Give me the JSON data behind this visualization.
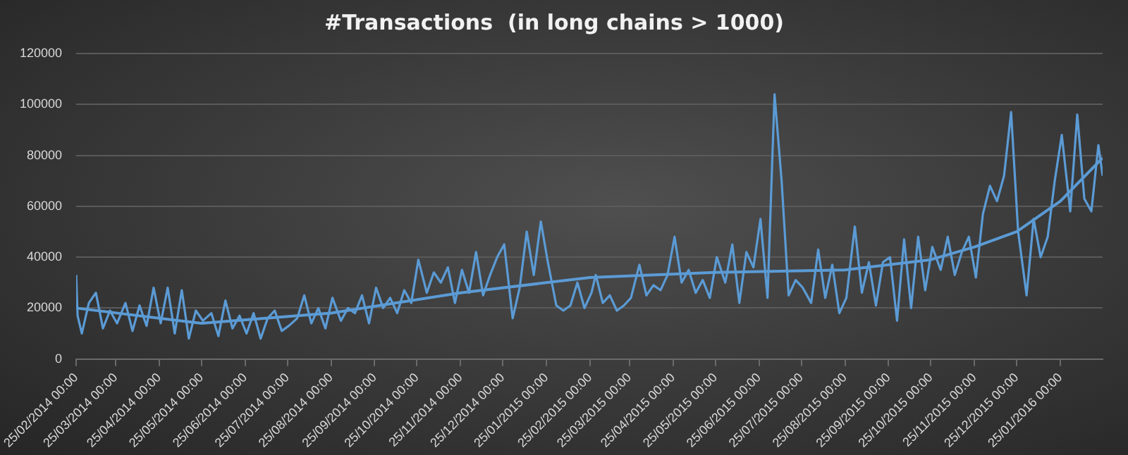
{
  "chart_data": {
    "type": "line",
    "title": "#Transactions  (in long chains > 1000)",
    "xlim": [
      "2014-02-25",
      "2016-02-24"
    ],
    "xticks": [
      {
        "value": "2014-02-25",
        "label": "25/02/2014 00:00"
      },
      {
        "value": "2014-03-25",
        "label": "25/03/2014 00:00"
      },
      {
        "value": "2014-04-25",
        "label": "25/04/2014 00:00"
      },
      {
        "value": "2014-05-25",
        "label": "25/05/2014 00:00"
      },
      {
        "value": "2014-06-25",
        "label": "25/06/2014 00:00"
      },
      {
        "value": "2014-07-25",
        "label": "25/07/2014 00:00"
      },
      {
        "value": "2014-08-25",
        "label": "25/08/2014 00:00"
      },
      {
        "value": "2014-09-25",
        "label": "25/09/2014 00:00"
      },
      {
        "value": "2014-10-25",
        "label": "25/10/2014 00:00"
      },
      {
        "value": "2014-11-25",
        "label": "25/11/2014 00:00"
      },
      {
        "value": "2014-12-25",
        "label": "25/12/2014 00:00"
      },
      {
        "value": "2015-01-25",
        "label": "25/01/2015 00:00"
      },
      {
        "value": "2015-02-25",
        "label": "25/02/2015 00:00"
      },
      {
        "value": "2015-03-25",
        "label": "25/03/2015 00:00"
      },
      {
        "value": "2015-04-25",
        "label": "25/04/2015 00:00"
      },
      {
        "value": "2015-05-25",
        "label": "25/05/2015 00:00"
      },
      {
        "value": "2015-06-25",
        "label": "25/06/2015 00:00"
      },
      {
        "value": "2015-07-25",
        "label": "25/07/2015 00:00"
      },
      {
        "value": "2015-08-25",
        "label": "25/08/2015 00:00"
      },
      {
        "value": "2015-09-25",
        "label": "25/09/2015 00:00"
      },
      {
        "value": "2015-10-25",
        "label": "25/10/2015 00:00"
      },
      {
        "value": "2015-11-25",
        "label": "25/11/2015 00:00"
      },
      {
        "value": "2015-12-25",
        "label": "25/12/2015 00:00"
      },
      {
        "value": "2016-01-25",
        "label": "25/01/2016 00:00"
      }
    ],
    "ylim": [
      0,
      120000
    ],
    "yticks": [
      0,
      20000,
      40000,
      60000,
      80000,
      100000,
      120000
    ],
    "grid": "y",
    "legend": false,
    "marker": "none",
    "line_style": "solid",
    "series": [
      {
        "color": "#5b9bd5",
        "x": [
          "2014-02-25",
          "2014-02-26",
          "2014-03-01",
          "2014-03-06",
          "2014-03-11",
          "2014-03-16",
          "2014-03-21",
          "2014-03-26",
          "2014-04-01",
          "2014-04-06",
          "2014-04-11",
          "2014-04-16",
          "2014-04-21",
          "2014-04-26",
          "2014-05-01",
          "2014-05-06",
          "2014-05-11",
          "2014-05-16",
          "2014-05-21",
          "2014-05-26",
          "2014-06-01",
          "2014-06-06",
          "2014-06-11",
          "2014-06-16",
          "2014-06-21",
          "2014-06-26",
          "2014-07-01",
          "2014-07-06",
          "2014-07-11",
          "2014-07-16",
          "2014-07-21",
          "2014-07-26",
          "2014-08-01",
          "2014-08-06",
          "2014-08-11",
          "2014-08-16",
          "2014-08-21",
          "2014-08-26",
          "2014-09-01",
          "2014-09-06",
          "2014-09-11",
          "2014-09-16",
          "2014-09-21",
          "2014-09-26",
          "2014-10-01",
          "2014-10-06",
          "2014-10-11",
          "2014-10-16",
          "2014-10-21",
          "2014-10-26",
          "2014-11-01",
          "2014-11-06",
          "2014-11-11",
          "2014-11-16",
          "2014-11-21",
          "2014-11-26",
          "2014-12-01",
          "2014-12-06",
          "2014-12-11",
          "2014-12-16",
          "2014-12-21",
          "2014-12-26",
          "2015-01-01",
          "2015-01-06",
          "2015-01-11",
          "2015-01-16",
          "2015-01-21",
          "2015-01-26",
          "2015-02-01",
          "2015-02-06",
          "2015-02-11",
          "2015-02-16",
          "2015-02-21",
          "2015-02-26",
          "2015-03-01",
          "2015-03-06",
          "2015-03-11",
          "2015-03-16",
          "2015-03-21",
          "2015-03-26",
          "2015-04-01",
          "2015-04-06",
          "2015-04-11",
          "2015-04-16",
          "2015-04-21",
          "2015-04-26",
          "2015-05-01",
          "2015-05-06",
          "2015-05-11",
          "2015-05-16",
          "2015-05-21",
          "2015-05-26",
          "2015-06-01",
          "2015-06-06",
          "2015-06-11",
          "2015-06-16",
          "2015-06-21",
          "2015-06-26",
          "2015-07-01",
          "2015-07-06",
          "2015-07-11",
          "2015-07-16",
          "2015-07-21",
          "2015-07-26",
          "2015-08-01",
          "2015-08-06",
          "2015-08-11",
          "2015-08-16",
          "2015-08-21",
          "2015-08-26",
          "2015-09-01",
          "2015-09-06",
          "2015-09-11",
          "2015-09-16",
          "2015-09-21",
          "2015-09-26",
          "2015-10-01",
          "2015-10-06",
          "2015-10-11",
          "2015-10-16",
          "2015-10-21",
          "2015-10-26",
          "2015-11-01",
          "2015-11-06",
          "2015-11-11",
          "2015-11-16",
          "2015-11-21",
          "2015-11-26",
          "2015-12-01",
          "2015-12-06",
          "2015-12-11",
          "2015-12-16",
          "2015-12-21",
          "2015-12-26",
          "2016-01-01",
          "2016-01-06",
          "2016-01-11",
          "2016-01-16",
          "2016-01-21",
          "2016-01-26",
          "2016-02-01",
          "2016-02-06",
          "2016-02-11",
          "2016-02-16",
          "2016-02-21",
          "2016-02-24"
        ],
        "values": [
          33000,
          17000,
          10000,
          22000,
          26000,
          12000,
          19000,
          14000,
          22000,
          11000,
          21000,
          13000,
          28000,
          14000,
          28000,
          10000,
          27000,
          8000,
          19000,
          15000,
          18000,
          9000,
          23000,
          12000,
          17000,
          10000,
          18000,
          8000,
          16000,
          19000,
          11000,
          13000,
          16000,
          25000,
          14000,
          20000,
          12000,
          24000,
          15000,
          20000,
          18000,
          25000,
          14000,
          28000,
          20000,
          24000,
          18000,
          27000,
          22000,
          39000,
          26000,
          34000,
          30000,
          36000,
          22000,
          35000,
          26000,
          42000,
          25000,
          33000,
          40000,
          45000,
          16000,
          28000,
          50000,
          33000,
          54000,
          38000,
          21000,
          19000,
          21000,
          30000,
          20000,
          26000,
          33000,
          22000,
          25000,
          19000,
          21000,
          24000,
          37000,
          25000,
          29000,
          27000,
          33000,
          48000,
          30000,
          35000,
          26000,
          31000,
          24000,
          40000,
          30000,
          45000,
          22000,
          42000,
          36000,
          55000,
          24000,
          104000,
          70000,
          25000,
          31000,
          28000,
          22000,
          43000,
          24000,
          37000,
          18000,
          24000,
          52000,
          26000,
          38000,
          21000,
          38000,
          40000,
          15000,
          47000,
          20000,
          48000,
          27000,
          44000,
          35000,
          48000,
          33000,
          42000,
          48000,
          32000,
          57000,
          68000,
          62000,
          72000,
          97000,
          50000,
          25000,
          55000,
          40000,
          48000,
          70000,
          88000,
          58000,
          96000,
          63000,
          58000,
          84000,
          72000
        ]
      },
      {
        "type": "line",
        "color": "#5b9bd5",
        "x": [
          "2014-02-25",
          "2014-05-25",
          "2014-08-25",
          "2014-11-25",
          "2015-02-25",
          "2015-05-25",
          "2015-08-25",
          "2015-10-25",
          "2015-11-25",
          "2015-12-25",
          "2016-01-25",
          "2016-02-24"
        ],
        "values": [
          20000,
          14000,
          18000,
          26000,
          32000,
          34000,
          35000,
          39000,
          44000,
          50000,
          62000,
          79000
        ]
      }
    ]
  }
}
